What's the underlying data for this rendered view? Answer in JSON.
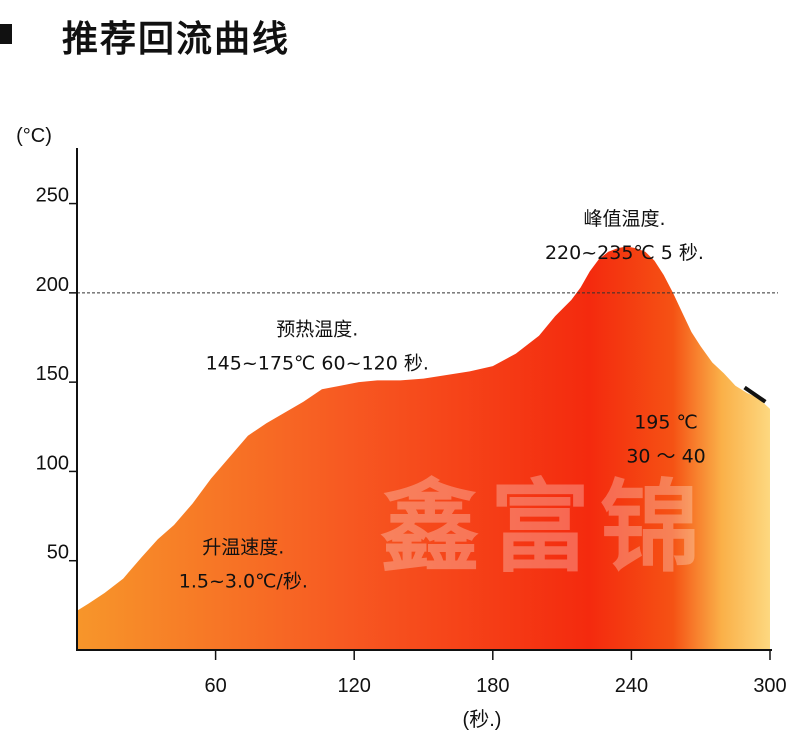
{
  "header": {
    "title": "推荐回流曲线"
  },
  "watermark": "鑫富锦",
  "chart_data": {
    "type": "area",
    "title": "",
    "xlabel": "(秒.)",
    "ylabel": "(°C)",
    "xlim": [
      0,
      300
    ],
    "ylim": [
      0,
      280
    ],
    "x_ticks": [
      60,
      120,
      180,
      240,
      300
    ],
    "x_tick_labels": [
      "60",
      "120",
      "180",
      "240",
      "300"
    ],
    "y_ticks": [
      50,
      100,
      150,
      200,
      250
    ],
    "y_tick_labels": [
      "50",
      "100",
      "150",
      "200",
      "250"
    ],
    "reference_line": {
      "y": 200,
      "style": "dotted"
    },
    "grid": false,
    "legend": "none",
    "series": [
      {
        "x": [
          0,
          5,
          12,
          20,
          28,
          35,
          42,
          50,
          58,
          66,
          74,
          82,
          90,
          98,
          106,
          114,
          122,
          130,
          140,
          150,
          160,
          170,
          180,
          190,
          200,
          207,
          214,
          218,
          222,
          226,
          230,
          234,
          238,
          242,
          246,
          250,
          254,
          258,
          262,
          266,
          270,
          275,
          280,
          285,
          290,
          295,
          300
        ],
        "y": [
          22,
          26,
          32,
          40,
          52,
          62,
          70,
          82,
          96,
          108,
          120,
          127,
          133,
          139,
          146,
          148,
          150,
          151,
          151,
          152,
          154,
          156,
          159,
          166,
          176,
          187,
          196,
          203,
          212,
          219,
          223,
          225,
          226,
          225,
          223,
          218,
          210,
          200,
          189,
          178,
          170,
          161,
          155,
          148,
          144,
          141,
          135
        ]
      }
    ],
    "gradient_colors": [
      "#f7962a",
      "#f75a22",
      "#f42a0e",
      "#f55214",
      "#fab048",
      "#fdd880"
    ],
    "end_marker": {
      "x": [
        289,
        298
      ],
      "y": [
        147,
        139
      ]
    },
    "annotations": [
      {
        "lines": [
          "峰值温度.",
          "220~235℃  5 秒."
        ],
        "x": 237,
        "y": 238
      },
      {
        "lines": [
          "预热温度.",
          "145~175℃    60~120 秒."
        ],
        "x": 104,
        "y": 176
      },
      {
        "lines": [
          "195 ℃",
          "30 ～ 40"
        ],
        "x": 255,
        "y": 124
      },
      {
        "lines": [
          "升温速度.",
          "1.5~3.0℃/秒."
        ],
        "x": 72,
        "y": 54
      }
    ]
  }
}
